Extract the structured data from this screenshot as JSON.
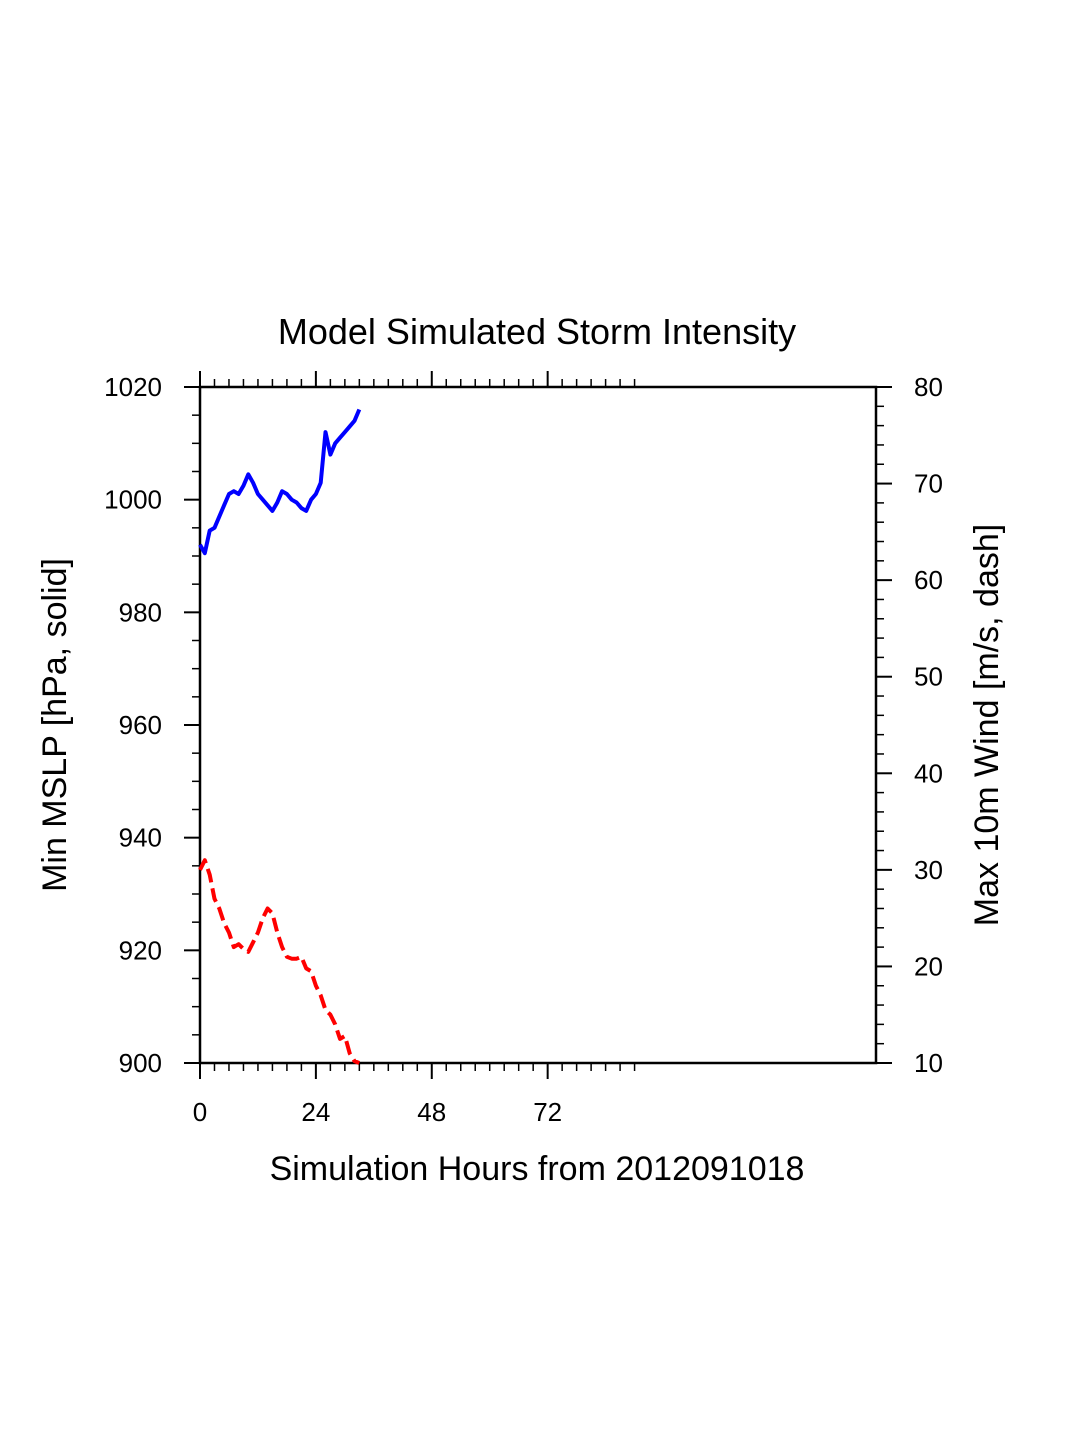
{
  "chart_data": {
    "type": "line",
    "title": "Model Simulated Storm Intensity",
    "xlabel": "Simulation Hours from 2012091018",
    "ylabel_left": "Min MSLP  [hPa, solid]",
    "ylabel_right": "Max 10m Wind  [m/s, dash]",
    "xlim": [
      0,
      140
    ],
    "ylim_left": [
      900,
      1020
    ],
    "ylim_right": [
      10,
      80
    ],
    "x_ticks": [
      0,
      24,
      48,
      72
    ],
    "y_left_ticks": [
      900,
      920,
      940,
      960,
      980,
      1000,
      1020
    ],
    "y_right_ticks": [
      10,
      20,
      30,
      40,
      50,
      60,
      70,
      80
    ],
    "grid": false,
    "series": [
      {
        "axis": "left",
        "style": "solid",
        "color": "#0000ff",
        "x": [
          0,
          1,
          2,
          3,
          4,
          5,
          6,
          7,
          8,
          9,
          10,
          11,
          12,
          13,
          14,
          15,
          16,
          17,
          18,
          19,
          20,
          21,
          22,
          23,
          24,
          25,
          26,
          27,
          28,
          29,
          30,
          31,
          32,
          33
        ],
        "values": [
          992,
          990.5,
          994.5,
          995,
          997,
          999,
          1001,
          1001.5,
          1001,
          1002.5,
          1004.5,
          1003,
          1001,
          1000,
          999,
          998,
          999.5,
          1001.5,
          1001,
          1000,
          999.5,
          998.5,
          998,
          1000,
          1001,
          1003,
          1012,
          1008,
          1010,
          1011,
          1012,
          1013,
          1014,
          1016
        ]
      },
      {
        "axis": "right",
        "style": "dash",
        "color": "#ff0000",
        "x": [
          0,
          1,
          2,
          3,
          4,
          5,
          6,
          7,
          8,
          9,
          10,
          11,
          12,
          13,
          14,
          15,
          16,
          17,
          18,
          19,
          20,
          21,
          22,
          23,
          24,
          25,
          26,
          27,
          28,
          29,
          30,
          31,
          32,
          33
        ],
        "values": [
          30,
          31,
          29.5,
          27,
          26,
          24.5,
          23.5,
          22,
          22.3,
          21.8,
          21.5,
          22.5,
          23.5,
          25,
          26,
          25.5,
          23.5,
          22,
          21,
          20.8,
          20.8,
          21,
          19.8,
          19.5,
          18,
          17,
          15.5,
          15,
          14,
          12.5,
          12.8,
          11,
          10.2,
          10
        ]
      }
    ]
  }
}
